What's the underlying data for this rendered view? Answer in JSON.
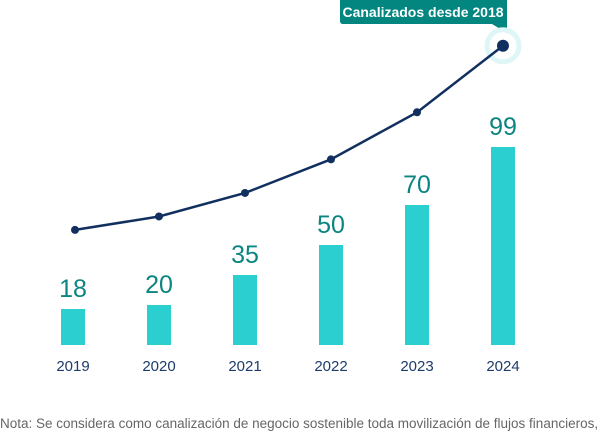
{
  "chart_data": {
    "type": "bar",
    "categories": [
      "2019",
      "2020",
      "2021",
      "2022",
      "2023",
      "2024"
    ],
    "series": [
      {
        "type": "bar",
        "values": [
          18,
          20,
          35,
          50,
          70,
          99
        ]
      },
      {
        "type": "line",
        "values": [
          18,
          38,
          73,
          123,
          193,
          292
        ]
      }
    ],
    "callout": "Canalizados desde 2018",
    "colors": {
      "bar": "#2ccfcf",
      "label": "#0b8580",
      "line": "#12305f",
      "callout": "#038580",
      "axis_text": "#1d3b6b"
    },
    "grid": false
  },
  "note": "Nota: Se considera como canalización de negocio sostenible toda movilización de flujos financieros, de"
}
